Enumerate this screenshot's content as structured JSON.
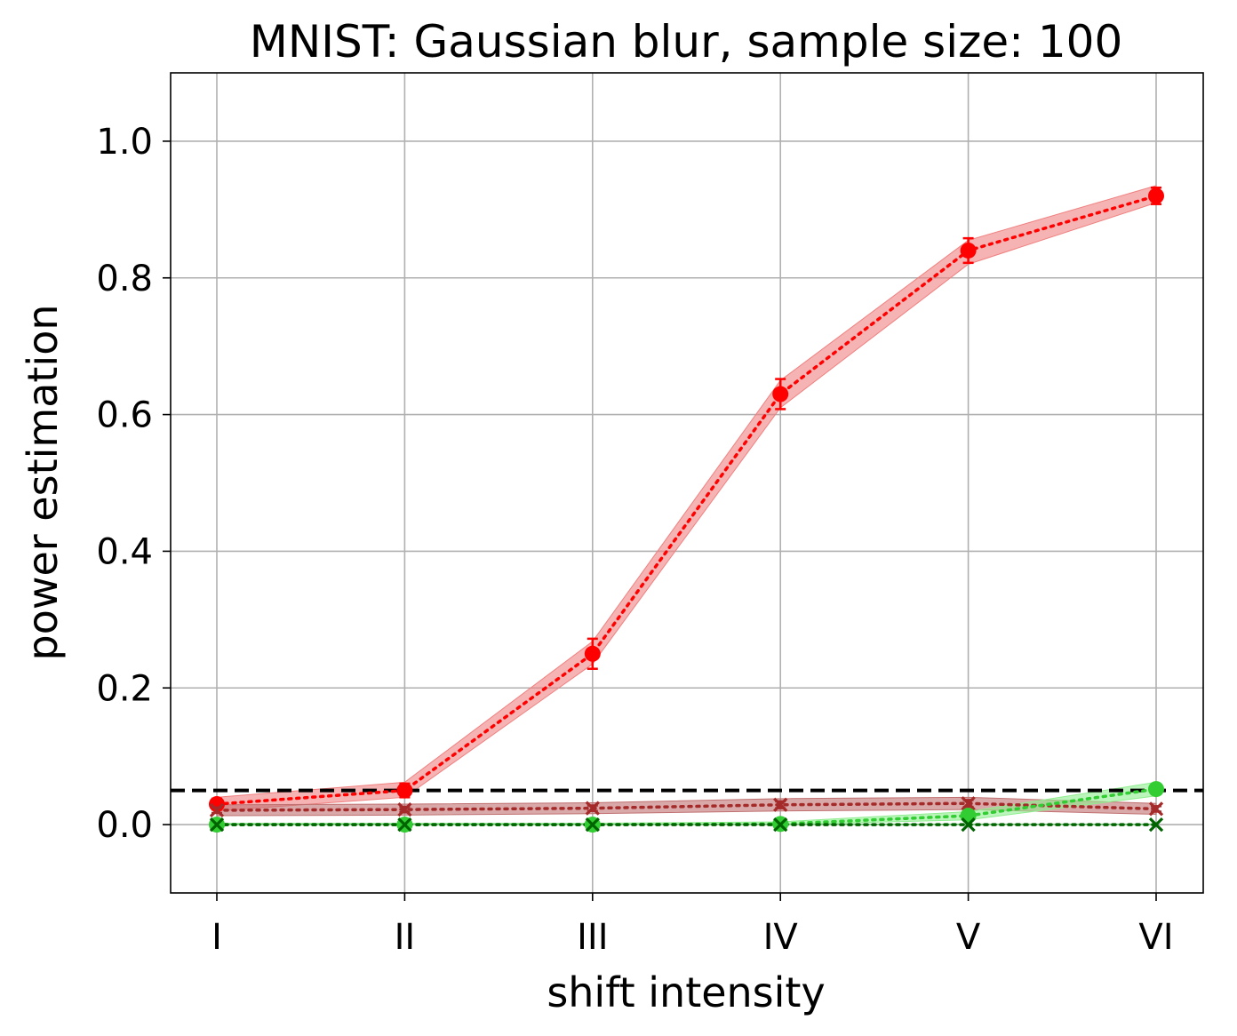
{
  "chart_data": {
    "type": "line",
    "title": "MNIST: Gaussian blur, sample size: 100",
    "xlabel": "shift intensity",
    "ylabel": "power estimation",
    "categories": [
      "I",
      "II",
      "III",
      "IV",
      "V",
      "VI"
    ],
    "ylim": [
      -0.1,
      1.1
    ],
    "yticks": [
      "0.0",
      "0.2",
      "0.4",
      "0.6",
      "0.8",
      "1.0"
    ],
    "grid": true,
    "reference_line": {
      "y": 0.05,
      "style": "dashed",
      "color": "#000000"
    },
    "series": [
      {
        "marker": "circle",
        "color": "#ff0000",
        "band_color": "#f08080",
        "line": "dotted",
        "values": [
          0.03,
          0.05,
          0.25,
          0.63,
          0.84,
          0.92
        ],
        "errors": [
          0.008,
          0.01,
          0.022,
          0.022,
          0.018,
          0.012
        ],
        "band_lower": [
          0.02,
          0.04,
          0.235,
          0.61,
          0.82,
          0.91
        ],
        "band_upper": [
          0.04,
          0.062,
          0.268,
          0.65,
          0.855,
          0.935
        ]
      },
      {
        "marker": "x",
        "color": "#a52a2a",
        "band_color": "#c07070",
        "line": "dotted",
        "values": [
          0.021,
          0.022,
          0.024,
          0.029,
          0.031,
          0.023
        ],
        "errors": [
          0.004,
          0.004,
          0.004,
          0.005,
          0.005,
          0.004
        ],
        "band_lower": [
          0.013,
          0.014,
          0.016,
          0.02,
          0.022,
          0.015
        ],
        "band_upper": [
          0.029,
          0.03,
          0.032,
          0.038,
          0.04,
          0.031
        ]
      },
      {
        "marker": "circle",
        "color": "#32cd32",
        "band_color": "#90ee90",
        "line": "dotted",
        "values": [
          0.0,
          0.0,
          0.0,
          0.001,
          0.013,
          0.052
        ],
        "errors": [
          0.001,
          0.001,
          0.001,
          0.002,
          0.004,
          0.007
        ],
        "band_lower": [
          0.0,
          0.0,
          0.0,
          0.0,
          0.007,
          0.042
        ],
        "band_upper": [
          0.002,
          0.002,
          0.002,
          0.004,
          0.019,
          0.062
        ]
      },
      {
        "marker": "x",
        "color": "#006400",
        "band_color": "#7fbf7f",
        "line": "dotted",
        "values": [
          0.0,
          0.0,
          0.0,
          0.0,
          0.0,
          0.0
        ],
        "errors": [
          0.0,
          0.0,
          0.0,
          0.0,
          0.0,
          0.0
        ],
        "band_lower": [
          0.0,
          0.0,
          0.0,
          0.0,
          0.0,
          0.0
        ],
        "band_upper": [
          0.001,
          0.001,
          0.001,
          0.001,
          0.001,
          0.001
        ]
      }
    ]
  }
}
